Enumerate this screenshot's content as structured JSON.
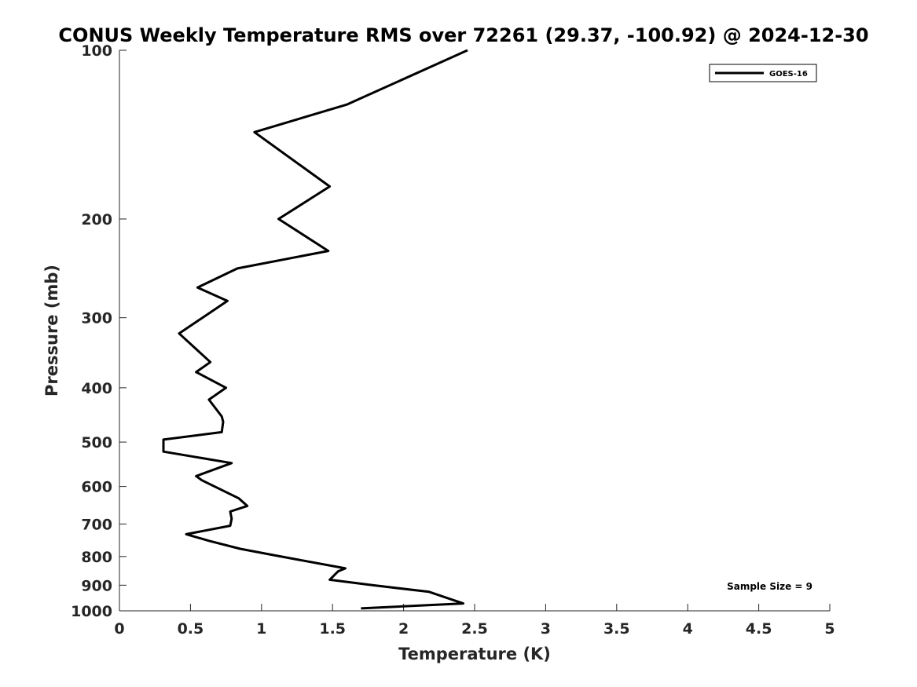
{
  "chart_data": {
    "type": "line",
    "title": "CONUS Weekly Temperature RMS over 72261 (29.37, -100.92) @ 2024-12-30",
    "xlabel": "Temperature (K)",
    "ylabel": "Pressure (mb)",
    "xlim": [
      0,
      5
    ],
    "ylim": [
      100,
      1000
    ],
    "y_scale": "log",
    "y_reversed": true,
    "grid": false,
    "legend_position": "top-right",
    "x_ticks": [
      "0",
      "0.5",
      "1",
      "1.5",
      "2",
      "2.5",
      "3",
      "3.5",
      "4",
      "4.5",
      "5"
    ],
    "y_ticks": [
      "100",
      "200",
      "300",
      "400",
      "500",
      "600",
      "700",
      "800",
      "900",
      "1000"
    ],
    "series": [
      {
        "name": "GOES-16",
        "color": "#000000",
        "x": [
          2.45,
          1.6,
          0.95,
          1.48,
          1.12,
          1.47,
          0.83,
          0.55,
          0.76,
          0.42,
          0.64,
          0.54,
          0.75,
          0.63,
          0.72,
          0.73,
          0.72,
          0.31,
          0.31,
          0.79,
          0.54,
          0.58,
          0.84,
          0.9,
          0.78,
          0.79,
          0.78,
          0.47,
          0.63,
          0.85,
          1.08,
          1.59,
          1.54,
          1.48,
          1.78,
          2.18,
          2.42,
          1.7
        ],
        "y": [
          100,
          125,
          140,
          175,
          200,
          228,
          245,
          265,
          280,
          320,
          360,
          375,
          400,
          420,
          450,
          460,
          480,
          495,
          520,
          545,
          575,
          585,
          630,
          650,
          665,
          685,
          705,
          730,
          750,
          775,
          795,
          840,
          850,
          880,
          900,
          925,
          970,
          990
        ]
      }
    ],
    "annotation": "Sample Size = 9"
  }
}
